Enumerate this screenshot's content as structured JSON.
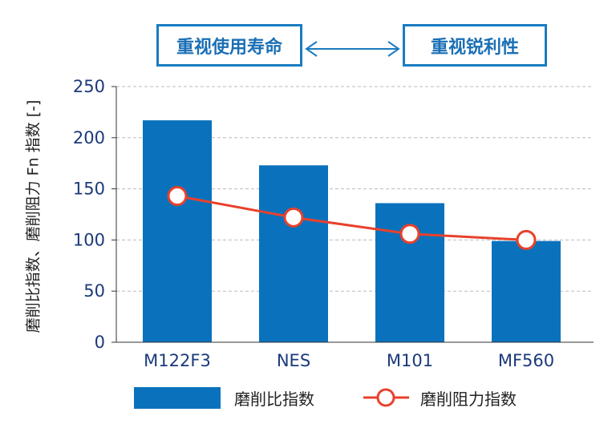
{
  "header": {
    "left_label": "重视使用寿命",
    "right_label": "重视锐利性"
  },
  "chart_data": {
    "type": "bar",
    "categories": [
      "M122F3",
      "NES",
      "M101",
      "MF560"
    ],
    "series": [
      {
        "name": "磨削比指数",
        "type": "bar",
        "values": [
          217,
          173,
          136,
          99
        ],
        "color": "#0a72bd"
      },
      {
        "name": "磨削阻力指数",
        "type": "line",
        "values": [
          143,
          122,
          106,
          100
        ],
        "color": "#e8412c"
      }
    ],
    "ylabel": "磨削比指数、磨削阻力 Fn 指数 [-]",
    "ylim": [
      0,
      250
    ],
    "yticks": [
      "0",
      "50",
      "100",
      "150",
      "200",
      "250"
    ],
    "grid": true,
    "legend": "bottom"
  }
}
